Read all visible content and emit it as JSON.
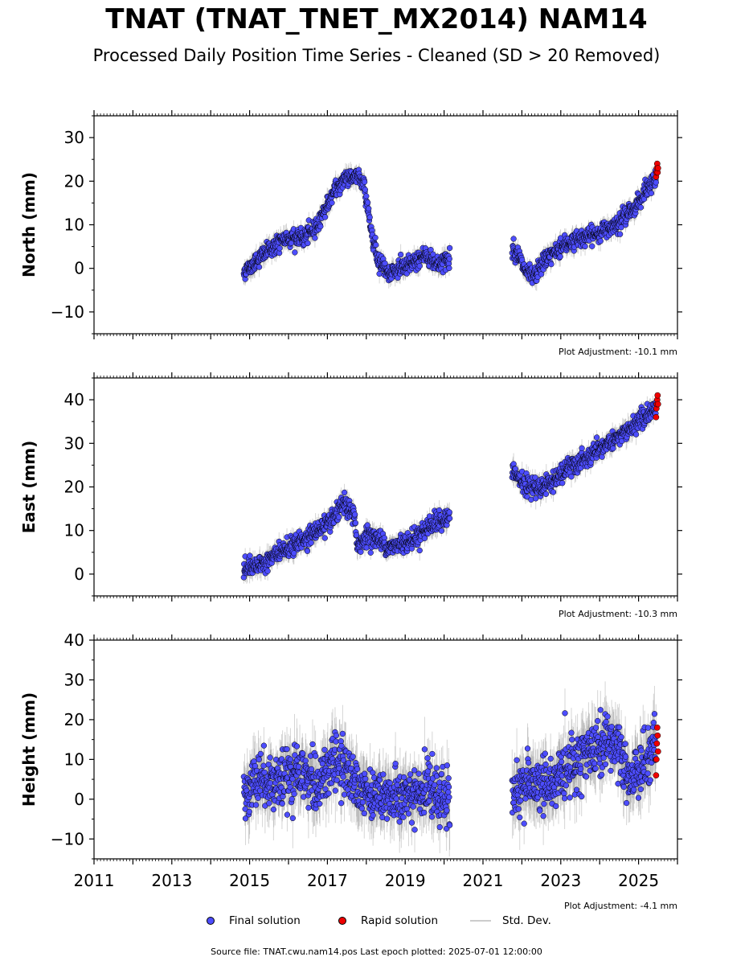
{
  "title": "TNAT (TNAT_TNET_MX2014) NAM14",
  "subtitle": "Processed Daily Position Time Series - Cleaned (SD > 20 Removed)",
  "footer": "Source file: TNAT.cwu.nam14.pos  Last epoch plotted: 2025-07-01 12:00:00",
  "legend": {
    "final": "Final solution",
    "rapid": "Rapid solution",
    "std": "Std. Dev."
  },
  "colors": {
    "final": "#4d4dff",
    "rapid": "#ee0000",
    "std": "#888888",
    "marker_edge": "#000000"
  },
  "chart_data": [
    {
      "type": "scatter",
      "ylabel": "North (mm)",
      "adjustment": "Plot Adjustment: -10.1 mm",
      "xlim": [
        2011,
        2026
      ],
      "ylim": [
        -15,
        35
      ],
      "yticks": [
        -10,
        0,
        10,
        20,
        30
      ],
      "ytick_labels": [
        "−10",
        "0",
        "10",
        "20",
        "30"
      ],
      "xticks": [
        2011,
        2013,
        2015,
        2017,
        2019,
        2021,
        2023,
        2025
      ],
      "xtick_labels": [],
      "final_trend": [
        [
          2014.85,
          -1
        ],
        [
          2015.2,
          2
        ],
        [
          2015.6,
          5
        ],
        [
          2016.0,
          7
        ],
        [
          2016.4,
          7
        ],
        [
          2016.75,
          10
        ],
        [
          2016.9,
          13
        ],
        [
          2017.2,
          18
        ],
        [
          2017.5,
          21
        ],
        [
          2017.8,
          21
        ],
        [
          2017.95,
          19
        ],
        [
          2018.1,
          10
        ],
        [
          2018.3,
          2
        ],
        [
          2018.6,
          -1
        ],
        [
          2018.9,
          0
        ],
        [
          2019.2,
          1
        ],
        [
          2019.5,
          3
        ],
        [
          2019.8,
          1
        ],
        [
          2020.15,
          2
        ],
        [
          2021.75,
          5
        ],
        [
          2021.9,
          3
        ],
        [
          2022.1,
          -1
        ],
        [
          2022.3,
          -2
        ],
        [
          2022.6,
          2
        ],
        [
          2023.0,
          5
        ],
        [
          2023.5,
          7
        ],
        [
          2024.0,
          8
        ],
        [
          2024.5,
          11
        ],
        [
          2024.9,
          14
        ],
        [
          2025.3,
          19
        ],
        [
          2025.45,
          21
        ]
      ],
      "final_noise": 1.6,
      "rapid_points": [
        [
          2025.45,
          21
        ],
        [
          2025.46,
          22
        ],
        [
          2025.47,
          23
        ],
        [
          2025.48,
          24
        ],
        [
          2025.49,
          22
        ],
        [
          2025.5,
          23
        ]
      ]
    },
    {
      "type": "scatter",
      "ylabel": "East (mm)",
      "adjustment": "Plot Adjustment: -10.3 mm",
      "xlim": [
        2011,
        2026
      ],
      "ylim": [
        -5,
        45
      ],
      "yticks": [
        0,
        10,
        20,
        30,
        40
      ],
      "ytick_labels": [
        "0",
        "10",
        "20",
        "30",
        "40"
      ],
      "xticks": [
        2011,
        2013,
        2015,
        2017,
        2019,
        2021,
        2023,
        2025
      ],
      "xtick_labels": [],
      "final_trend": [
        [
          2014.85,
          1
        ],
        [
          2015.2,
          2
        ],
        [
          2015.6,
          4
        ],
        [
          2016.0,
          6
        ],
        [
          2016.4,
          8
        ],
        [
          2016.75,
          10
        ],
        [
          2017.1,
          12
        ],
        [
          2017.4,
          16
        ],
        [
          2017.7,
          14
        ],
        [
          2017.75,
          6
        ],
        [
          2018.0,
          9
        ],
        [
          2018.3,
          8
        ],
        [
          2018.6,
          6
        ],
        [
          2018.9,
          7
        ],
        [
          2019.2,
          8
        ],
        [
          2019.6,
          11
        ],
        [
          2020.15,
          13
        ],
        [
          2021.75,
          24
        ],
        [
          2021.9,
          22
        ],
        [
          2022.1,
          20
        ],
        [
          2022.5,
          20
        ],
        [
          2022.9,
          22
        ],
        [
          2023.3,
          25
        ],
        [
          2023.8,
          27
        ],
        [
          2024.2,
          30
        ],
        [
          2024.6,
          32
        ],
        [
          2025.0,
          35
        ],
        [
          2025.45,
          38
        ]
      ],
      "final_noise": 1.7,
      "rapid_points": [
        [
          2025.45,
          36
        ],
        [
          2025.46,
          38
        ],
        [
          2025.47,
          39
        ],
        [
          2025.48,
          40
        ],
        [
          2025.49,
          41
        ],
        [
          2025.5,
          39
        ]
      ]
    },
    {
      "type": "scatter",
      "ylabel": "Height (mm)",
      "adjustment": "Plot Adjustment: -4.1 mm",
      "xlim": [
        2011,
        2026
      ],
      "ylim": [
        -15,
        40
      ],
      "yticks": [
        -10,
        0,
        10,
        20,
        30,
        40
      ],
      "ytick_labels": [
        "−10",
        "0",
        "10",
        "20",
        "30",
        "40"
      ],
      "xticks": [
        2011,
        2013,
        2015,
        2017,
        2019,
        2021,
        2023,
        2025
      ],
      "xtick_labels": [
        "2011",
        "2013",
        "2015",
        "2017",
        "2019",
        "2021",
        "2023",
        "2025"
      ],
      "final_trend": [
        [
          2014.85,
          2
        ],
        [
          2015.3,
          6
        ],
        [
          2015.8,
          4
        ],
        [
          2016.3,
          6
        ],
        [
          2016.75,
          4
        ],
        [
          2017.2,
          10
        ],
        [
          2017.6,
          6
        ],
        [
          2018.1,
          2
        ],
        [
          2018.6,
          0
        ],
        [
          2019.1,
          1
        ],
        [
          2019.6,
          2
        ],
        [
          2020.15,
          0
        ],
        [
          2021.75,
          2
        ],
        [
          2022.3,
          4
        ],
        [
          2022.8,
          3
        ],
        [
          2023.3,
          10
        ],
        [
          2023.8,
          12
        ],
        [
          2024.3,
          15
        ],
        [
          2024.75,
          5
        ],
        [
          2025.2,
          10
        ],
        [
          2025.45,
          15
        ]
      ],
      "final_noise": 5.5,
      "rapid_points": [
        [
          2025.45,
          6
        ],
        [
          2025.46,
          10
        ],
        [
          2025.47,
          14
        ],
        [
          2025.48,
          18
        ],
        [
          2025.49,
          16
        ],
        [
          2025.5,
          12
        ]
      ]
    }
  ]
}
